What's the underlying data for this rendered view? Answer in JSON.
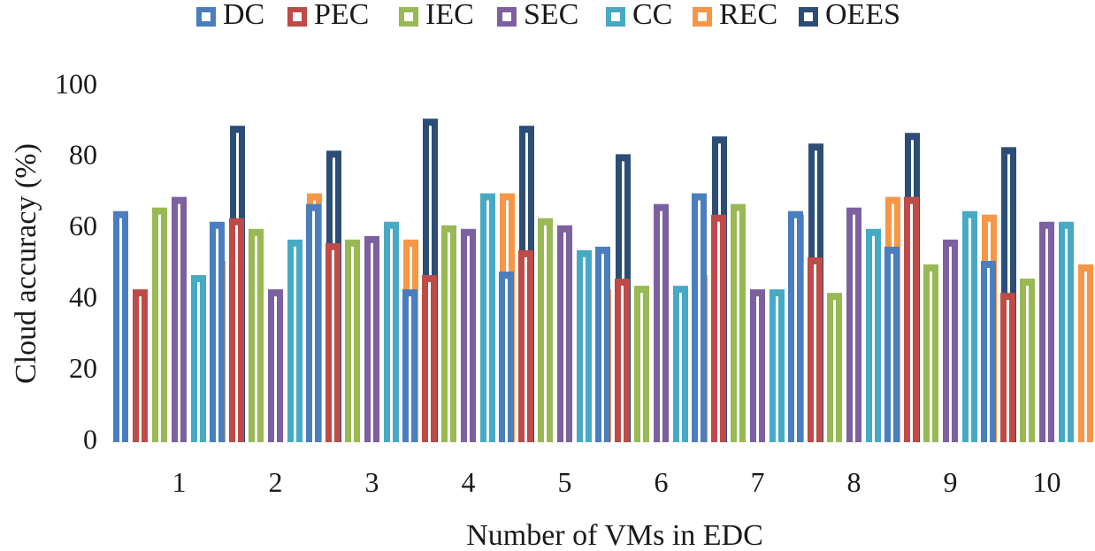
{
  "chart_data": {
    "type": "bar",
    "title": "",
    "xlabel": "Number of VMs in EDC",
    "ylabel": "Cloud accuracy (%)",
    "ylim": [
      0,
      100
    ],
    "yticks": [
      "0",
      "20",
      "40",
      "60",
      "80",
      "100"
    ],
    "categories": [
      "1",
      "2",
      "3",
      "4",
      "5",
      "6",
      "7",
      "8",
      "9",
      "10"
    ],
    "grid": false,
    "legend_position": "top",
    "series": [
      {
        "name": "DC",
        "color": "#4a7ebf",
        "values": [
          65,
          62,
          67,
          43,
          48,
          55,
          70,
          65,
          55,
          51
        ]
      },
      {
        "name": "PEC",
        "color": "#be4b48",
        "values": [
          43,
          63,
          56,
          47,
          54,
          46,
          64,
          52,
          69,
          42
        ]
      },
      {
        "name": "IEC",
        "color": "#98b954",
        "values": [
          66,
          60,
          57,
          61,
          63,
          44,
          67,
          42,
          50,
          46
        ]
      },
      {
        "name": "SEC",
        "color": "#7d60a0",
        "values": [
          69,
          43,
          58,
          60,
          61,
          67,
          43,
          66,
          57,
          62
        ]
      },
      {
        "name": "CC",
        "color": "#46aac5",
        "values": [
          47,
          57,
          62,
          70,
          54,
          44,
          43,
          60,
          65,
          62
        ]
      },
      {
        "name": "REC",
        "color": "#f79646",
        "values": [
          51,
          70,
          57,
          70,
          43,
          47,
          64,
          69,
          64,
          50
        ]
      },
      {
        "name": "OEES",
        "color": "#2c4d75",
        "values": [
          89,
          82,
          91,
          89,
          81,
          86,
          84,
          87,
          83,
          87
        ]
      }
    ]
  }
}
